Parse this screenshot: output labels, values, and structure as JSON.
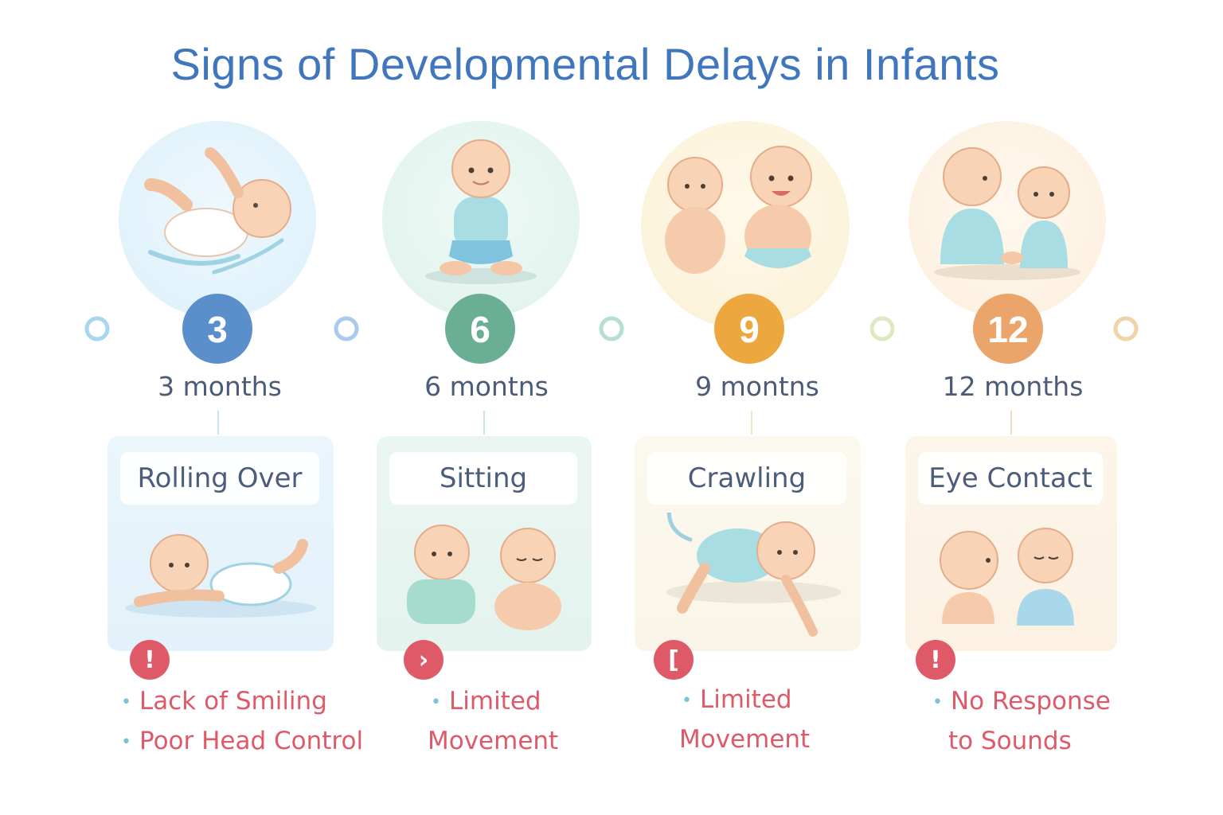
{
  "title": "Signs of Developmental Delays in Infants",
  "stages": [
    {
      "number": "3",
      "label": "3 months",
      "milestone": "Rolling Over",
      "warning_glyph": "!",
      "signs": [
        "Lack of Smiling",
        "Poor Head Control"
      ],
      "accent": "#5b8fcb",
      "bubble": "#e2f2fb",
      "card": "#e6f3fb"
    },
    {
      "number": "6",
      "label": "6 montns",
      "milestone": "Sitting",
      "warning_glyph": "›",
      "signs": [
        "Limited",
        "Movement"
      ],
      "accent": "#6aaf94",
      "bubble": "#e2f4ef",
      "card": "#e7f5f1"
    },
    {
      "number": "9",
      "label": "9 montns",
      "milestone": "Crawling",
      "warning_glyph": "[",
      "signs": [
        "Limited",
        "Movement"
      ],
      "accent": "#eca83f",
      "bubble": "#fdf5df",
      "card": "#fbf7ea"
    },
    {
      "number": "12",
      "label": "12 months",
      "milestone": "Eye Contact",
      "warning_glyph": "!",
      "signs": [
        "No Response",
        "to Sounds"
      ],
      "accent": "#eba56b",
      "bubble": "#fdf2e4",
      "card": "#fdf3e7"
    }
  ]
}
